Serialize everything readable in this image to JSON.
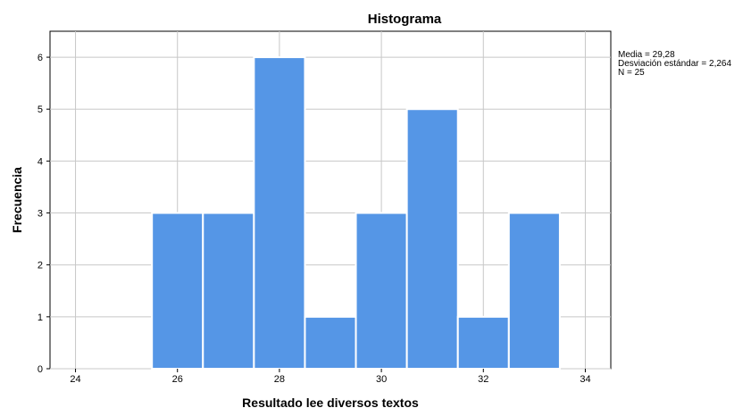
{
  "chart_data": {
    "type": "bar",
    "title": "Histograma",
    "xlabel": "Resultado lee diversos textos",
    "ylabel": "Frecuencia",
    "xlim": [
      23.5,
      34.5
    ],
    "ylim": [
      0,
      6.5
    ],
    "x_ticks": [
      24,
      26,
      28,
      30,
      32,
      34
    ],
    "y_ticks": [
      0,
      1,
      2,
      3,
      4,
      5,
      6
    ],
    "bins": [
      {
        "start": 25.5,
        "end": 26.5,
        "count": 3
      },
      {
        "start": 26.5,
        "end": 27.5,
        "count": 3
      },
      {
        "start": 27.5,
        "end": 28.5,
        "count": 6
      },
      {
        "start": 28.5,
        "end": 29.5,
        "count": 1
      },
      {
        "start": 29.5,
        "end": 30.5,
        "count": 3
      },
      {
        "start": 30.5,
        "end": 31.5,
        "count": 5
      },
      {
        "start": 31.5,
        "end": 32.5,
        "count": 1
      },
      {
        "start": 32.5,
        "end": 33.5,
        "count": 3
      }
    ],
    "grid": true,
    "bar_color": "#5596e6",
    "stats": {
      "mean_label": "Media = 29,28",
      "sd_label": "Desviación estándar = 2,264",
      "n_label": "N = 25"
    }
  }
}
